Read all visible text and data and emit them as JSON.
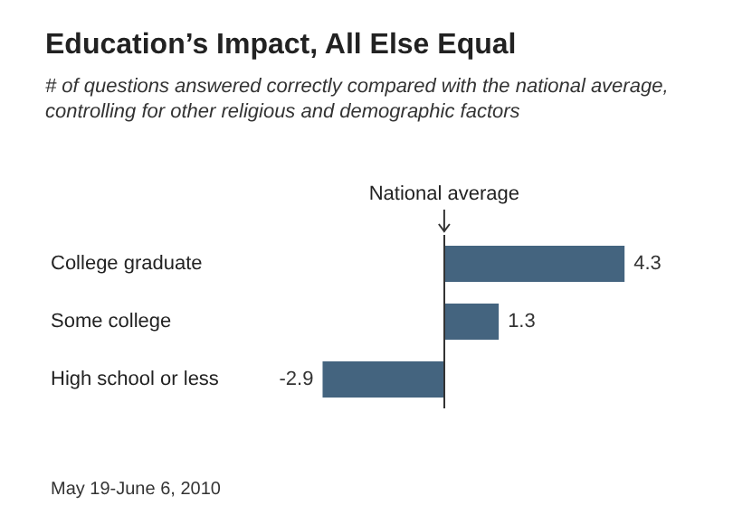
{
  "chart_data": {
    "type": "bar",
    "orientation": "horizontal",
    "title": "Education’s Impact, All Else Equal",
    "subtitle": "# of questions answered correctly compared with the national average, controlling for other religious and demographic factors",
    "categories": [
      "College graduate",
      "Some college",
      "High school or less"
    ],
    "values": [
      4.3,
      1.3,
      -2.9
    ],
    "color": "#44647f",
    "data_labels": true,
    "ref_lines": [
      {
        "axis": "x",
        "value": 0,
        "label": "National average",
        "color": "#333333"
      }
    ],
    "annotations": [
      "May 19-June 6, 2010"
    ]
  }
}
